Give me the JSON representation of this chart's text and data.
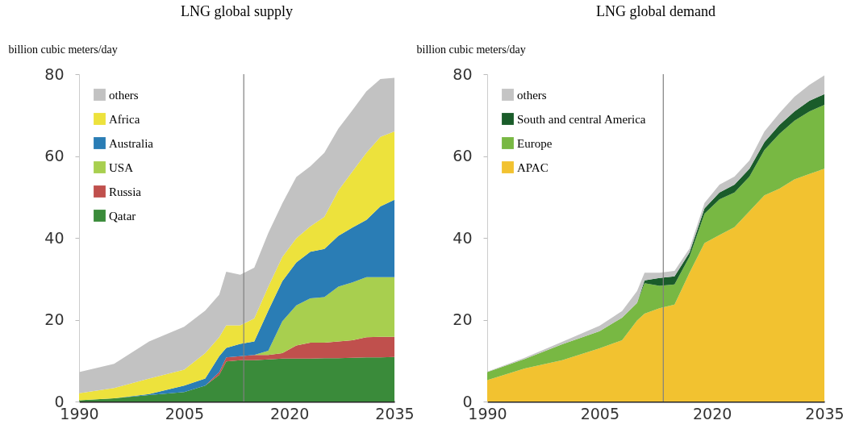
{
  "chart_data": [
    {
      "type": "area",
      "title": "LNG global supply",
      "ylabel": "billion cubic meters/day",
      "stacked": true,
      "x": [
        1990,
        1995,
        2000,
        2005,
        2008,
        2010,
        2011,
        2013,
        2015,
        2017,
        2019,
        2021,
        2023,
        2025,
        2027,
        2029,
        2031,
        2033,
        2035
      ],
      "series": [
        {
          "name": "Qatar",
          "color": "#3a8b3a",
          "values": [
            0.3,
            0.8,
            1.6,
            2.3,
            3.9,
            6.5,
            9.8,
            10.1,
            10.1,
            10.3,
            10.5,
            10.5,
            10.5,
            10.6,
            10.6,
            10.7,
            10.8,
            10.8,
            10.9
          ]
        },
        {
          "name": "Russia",
          "color": "#c0504d",
          "values": [
            0,
            0,
            0,
            0,
            0,
            0.7,
            1.0,
            1.0,
            1.3,
            1.1,
            1.3,
            3.2,
            3.9,
            3.8,
            4.1,
            4.3,
            4.9,
            5.0,
            4.9
          ]
        },
        {
          "name": "USA",
          "color": "#a8cf4f",
          "values": [
            0,
            0,
            0,
            0,
            0,
            0,
            0,
            0,
            0,
            1.0,
            7.8,
            9.8,
            10.8,
            11.1,
            13.4,
            14.1,
            14.7,
            14.6,
            14.6
          ]
        },
        {
          "name": "Australia",
          "color": "#2a7db5",
          "values": [
            0,
            0,
            0.2,
            1.6,
            1.7,
            3.9,
            2.3,
            3.0,
            3.3,
            9.8,
            9.8,
            10.5,
            11.4,
            11.8,
            12.4,
            13.4,
            14.0,
            17.3,
            18.9
          ]
        },
        {
          "name": "Africa",
          "color": "#ede23c",
          "values": [
            1.7,
            2.5,
            3.8,
            3.9,
            6.2,
            4.6,
            5.5,
            4.5,
            5.6,
            5.9,
            5.9,
            5.9,
            6.2,
            7.8,
            11.1,
            13.7,
            16.4,
            17.0,
            16.7
          ]
        },
        {
          "name": "others",
          "color": "#c2c2c2",
          "values": [
            5.2,
            5.9,
            9.1,
            10.5,
            10.4,
            10.4,
            13.1,
            12.4,
            12.4,
            13.1,
            13.1,
            15.0,
            14.7,
            15.7,
            15.1,
            15.0,
            15.0,
            14.1,
            13.1
          ]
        }
      ],
      "xlim": [
        1990,
        2035
      ],
      "xticks": [
        1990,
        2005,
        2020,
        2035
      ],
      "ylim": [
        0,
        80
      ],
      "yticks": [
        0,
        20,
        40,
        60,
        80
      ],
      "ref_lines": [
        {
          "axis": "x",
          "value": 2013.5,
          "color": "#808080"
        }
      ],
      "grid": false,
      "legend": "top left"
    },
    {
      "type": "area",
      "title": "LNG global demand",
      "ylabel": "billion cubic meters/day",
      "stacked": true,
      "x": [
        1990,
        1995,
        2000,
        2005,
        2008,
        2010,
        2011,
        2013,
        2015,
        2017,
        2019,
        2021,
        2023,
        2025,
        2027,
        2029,
        2031,
        2033,
        2035
      ],
      "series": [
        {
          "name": "APAC",
          "color": "#f2c230",
          "values": [
            5.2,
            8.1,
            10.1,
            13.0,
            15.0,
            19.8,
            21.5,
            22.8,
            23.7,
            31.5,
            38.7,
            40.7,
            42.6,
            46.5,
            50.4,
            52.0,
            54.3,
            55.6,
            56.9
          ]
        },
        {
          "name": "Europe",
          "color": "#78b843",
          "values": [
            2.0,
            2.3,
            3.9,
            4.2,
            5.5,
            4.3,
            7.4,
            5.5,
            4.9,
            3.9,
            7.2,
            8.7,
            8.5,
            8.5,
            11.1,
            13.4,
            14.3,
            15.3,
            15.6
          ]
        },
        {
          "name": "South and central America",
          "color": "#1a5c2a",
          "values": [
            0,
            0,
            0,
            0,
            0,
            0,
            0.7,
            1.9,
            2.0,
            1.0,
            1.3,
            1.7,
            1.9,
            1.9,
            1.9,
            2.2,
            2.3,
            2.6,
            2.6
          ]
        },
        {
          "name": "others",
          "color": "#c4c4c4",
          "values": [
            0.1,
            0.3,
            0.6,
            1.3,
            1.6,
            2.9,
            1.9,
            1.3,
            1.3,
            1.0,
            1.3,
            1.9,
            2.0,
            2.0,
            2.6,
            2.9,
            3.6,
            3.9,
            4.6
          ]
        }
      ],
      "xlim": [
        1990,
        2035
      ],
      "xticks": [
        1990,
        2005,
        2020,
        2035
      ],
      "ylim": [
        0,
        80
      ],
      "yticks": [
        0,
        20,
        40,
        60,
        80
      ],
      "ref_lines": [
        {
          "axis": "x",
          "value": 2013.5,
          "color": "#808080"
        }
      ],
      "grid": false,
      "legend": "top left"
    }
  ]
}
